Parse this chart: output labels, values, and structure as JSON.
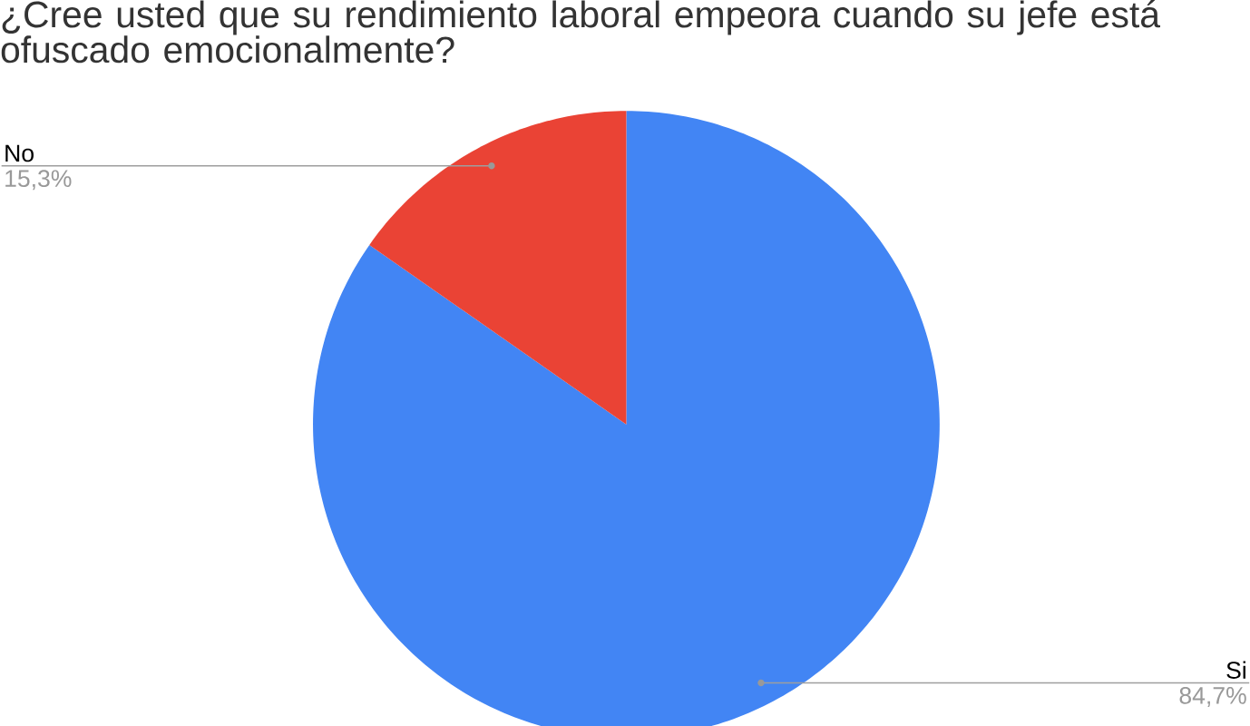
{
  "chart_data": {
    "type": "pie",
    "title": "¿Cree usted que su rendimiento laboral empeora cuando su jefe está ofuscado emocionalmente?",
    "categories": [
      "Si",
      "No"
    ],
    "values": [
      84.7,
      15.3
    ],
    "colors": [
      "#4285f4",
      "#ea4335"
    ],
    "value_labels": [
      "84,7%",
      "15,3%"
    ]
  }
}
